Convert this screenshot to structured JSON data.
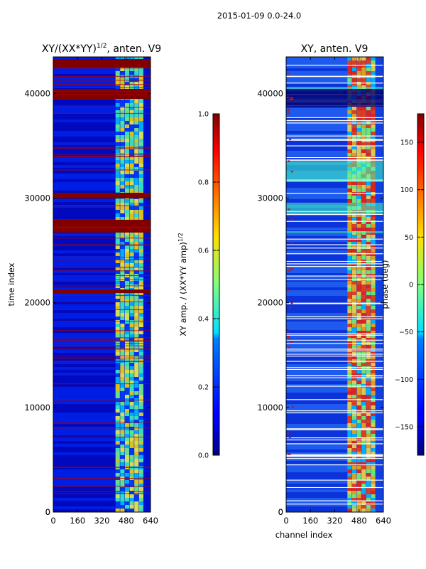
{
  "figure": {
    "suptitle": "2015-01-09 0.0-24.0"
  },
  "colors": {
    "low": "#00008f",
    "mid_low": "#0060ff",
    "mid": "#40ffbf",
    "mid_high": "#ffcf00",
    "high": "#800000"
  },
  "chart_data": [
    {
      "type": "heatmap",
      "title_prefix": "XY/(XX*YY)",
      "title_exp": "1/2",
      "title_suffix": ", anten. V9",
      "xlabel": "",
      "ylabel": "time index",
      "xlim": [
        0,
        640
      ],
      "ylim": [
        0,
        43500
      ],
      "xticks": [
        0,
        160,
        320,
        480,
        640
      ],
      "yticks": [
        0,
        10000,
        20000,
        30000,
        40000
      ],
      "colorbar": {
        "label_prefix": "XY amp. / (XX*YY amp)",
        "label_exp": "1/2",
        "range": [
          0,
          1.0
        ],
        "ticks": [
          "0.0",
          "0.2",
          "0.4",
          "0.6",
          "0.8",
          "1.0"
        ]
      }
    },
    {
      "type": "heatmap",
      "title": "XY, anten. V9",
      "xlabel": "channel index",
      "ylabel": "",
      "xlim": [
        0,
        640
      ],
      "ylim": [
        0,
        43500
      ],
      "xticks": [
        0,
        160,
        320,
        480,
        640
      ],
      "yticks": [
        0,
        10000,
        20000,
        30000,
        40000
      ],
      "colorbar": {
        "label": "phase (deg)",
        "range": [
          -180,
          180
        ],
        "ticks": [
          "−150",
          "−100",
          "−50",
          "0",
          "50",
          "100",
          "150"
        ]
      }
    }
  ]
}
